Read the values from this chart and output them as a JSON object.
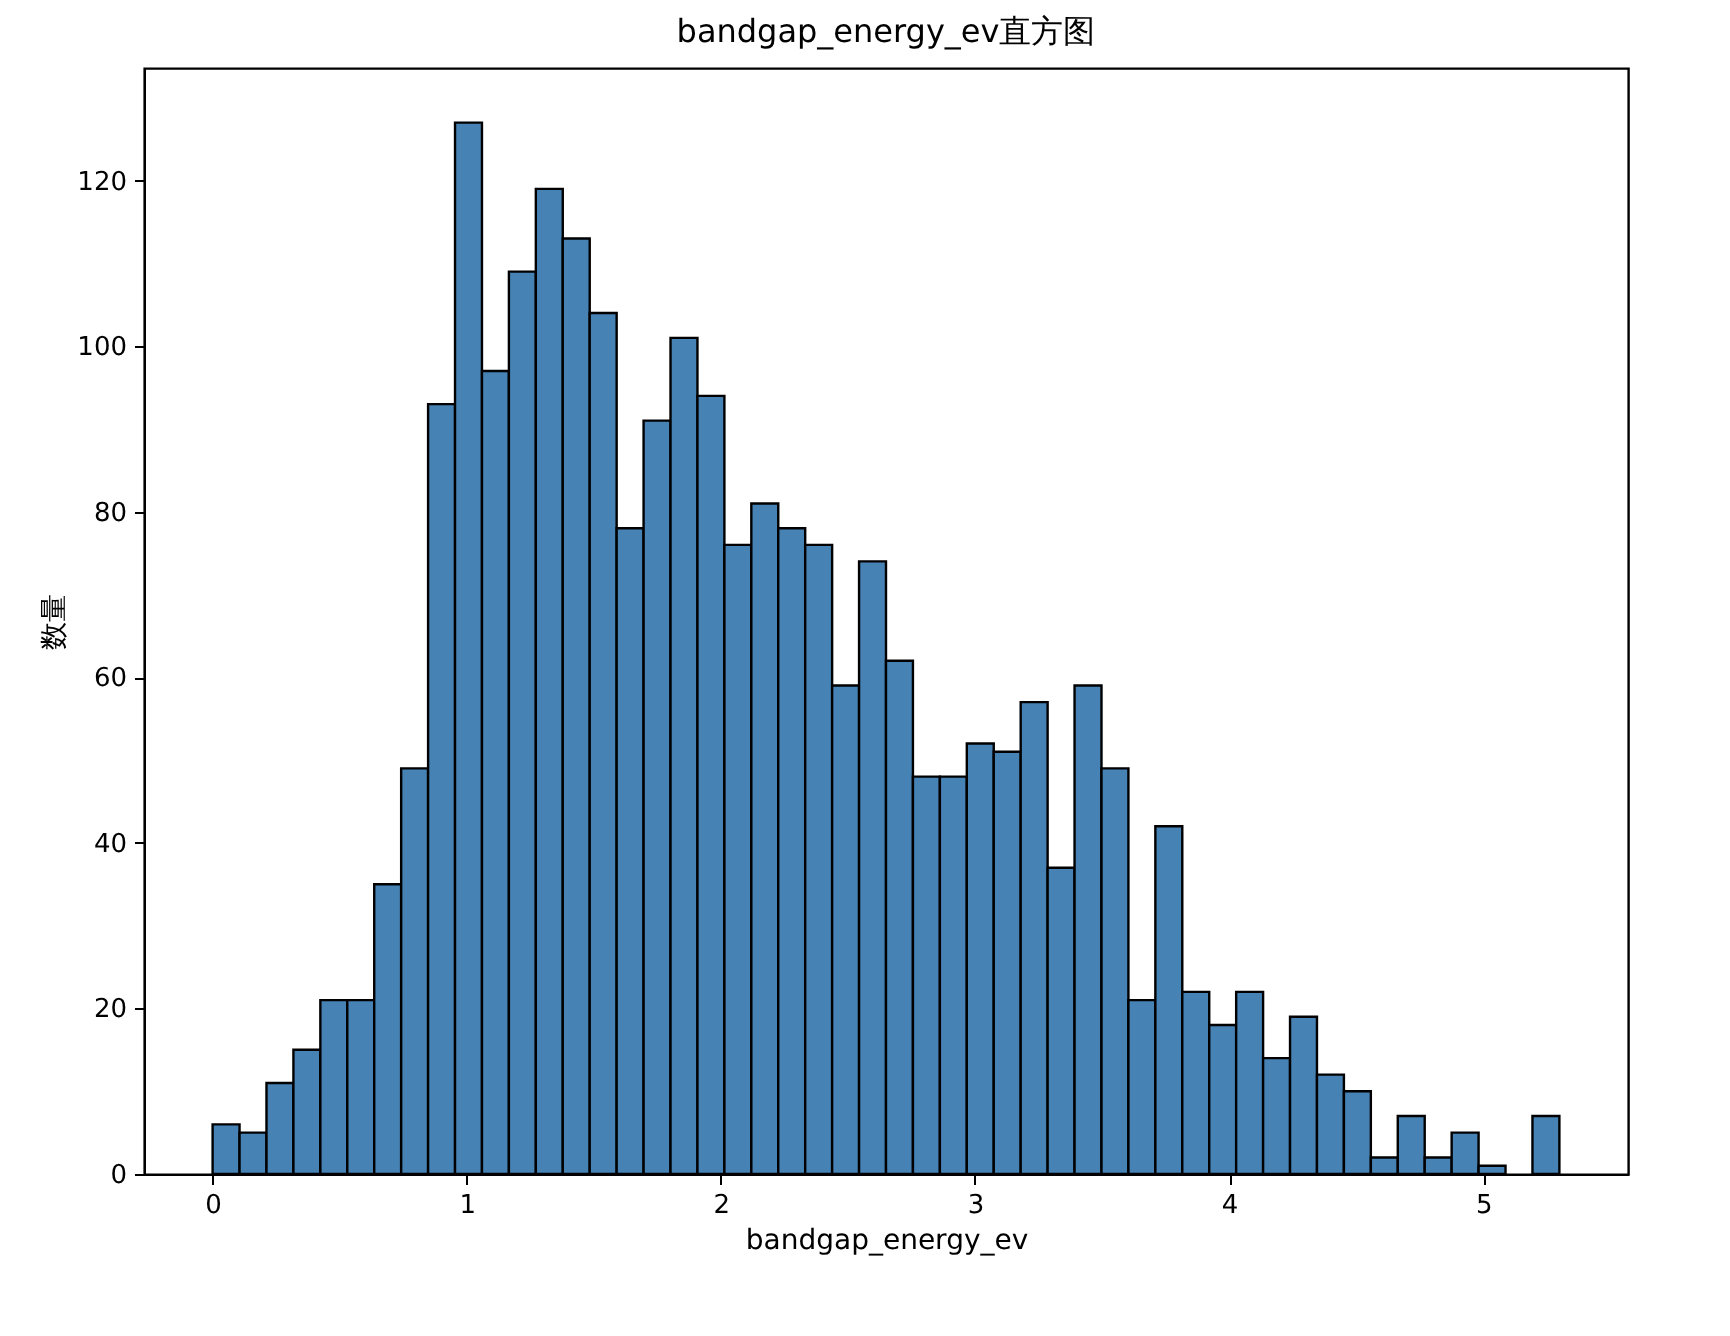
{
  "chart_data": {
    "type": "histogram",
    "title": "bandgap_energy_ev直方图",
    "xlabel": "bandgap_energy_ev",
    "ylabel": "数量",
    "color": "#4682b4",
    "bins": [
      0,
      0.106,
      0.212,
      0.318,
      0.424,
      0.53,
      0.636,
      0.742,
      0.848,
      0.954,
      1.06,
      1.166,
      1.272,
      1.378,
      1.484,
      1.59,
      1.696,
      1.802,
      1.908,
      2.014,
      2.12,
      2.226,
      2.332,
      2.438,
      2.544,
      2.65,
      2.756,
      2.862,
      2.968,
      3.074,
      3.18,
      3.286,
      3.392,
      3.498,
      3.604,
      3.71,
      3.816,
      3.922,
      4.028,
      4.134,
      4.24,
      4.346,
      4.452,
      4.558,
      4.664,
      4.77,
      4.876,
      4.982,
      5.088,
      5.194,
      5.3
    ],
    "values": [
      6,
      5,
      11,
      15,
      21,
      21,
      35,
      49,
      93,
      127,
      97,
      109,
      119,
      113,
      104,
      78,
      91,
      101,
      94,
      76,
      81,
      78,
      76,
      59,
      74,
      62,
      48,
      48,
      52,
      51,
      57,
      37,
      59,
      49,
      21,
      42,
      22,
      18,
      22,
      14,
      19,
      12,
      10,
      2,
      7,
      2,
      5,
      1,
      0,
      7
    ],
    "xlim": [
      -0.27,
      5.57
    ],
    "ylim": [
      0,
      133.6
    ],
    "xticks": [
      0,
      1,
      2,
      3,
      4,
      5
    ],
    "yticks": [
      0,
      20,
      40,
      60,
      80,
      100,
      120
    ],
    "grid": false
  }
}
